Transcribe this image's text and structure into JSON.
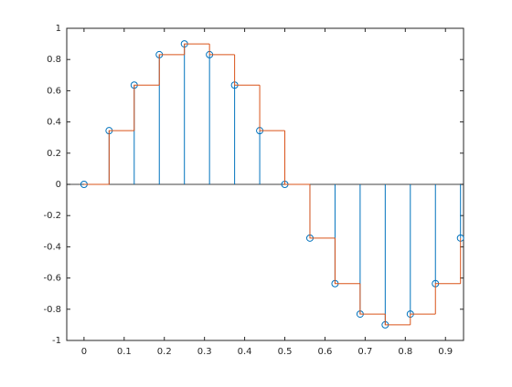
{
  "chart_data": {
    "type": "stem",
    "x": [
      0,
      0.0625,
      0.125,
      0.1875,
      0.25,
      0.3125,
      0.375,
      0.4375,
      0.5,
      0.5625,
      0.625,
      0.6875,
      0.75,
      0.8125,
      0.875,
      0.9375
    ],
    "series": [
      {
        "type": "stem",
        "color": "#0072BD",
        "values": [
          0,
          0.344,
          0.636,
          0.831,
          0.9,
          0.831,
          0.636,
          0.344,
          0,
          -0.344,
          -0.636,
          -0.831,
          -0.9,
          -0.831,
          -0.636,
          -0.344
        ]
      },
      {
        "type": "stairs",
        "color": "#D95319",
        "values": [
          0,
          0.344,
          0.636,
          0.831,
          0.9,
          0.831,
          0.636,
          0.344,
          0,
          -0.344,
          -0.636,
          -0.831,
          -0.9,
          -0.831,
          -0.636,
          -0.344
        ]
      }
    ],
    "xlim": [
      -0.043,
      0.945
    ],
    "ylim": [
      -1,
      1
    ],
    "xticks": [
      0,
      0.1,
      0.2,
      0.3,
      0.4,
      0.5,
      0.6,
      0.7,
      0.8,
      0.9
    ],
    "yticks": [
      -1,
      -0.8,
      -0.6,
      -0.4,
      -0.2,
      0,
      0.2,
      0.4,
      0.6,
      0.8,
      1
    ]
  }
}
